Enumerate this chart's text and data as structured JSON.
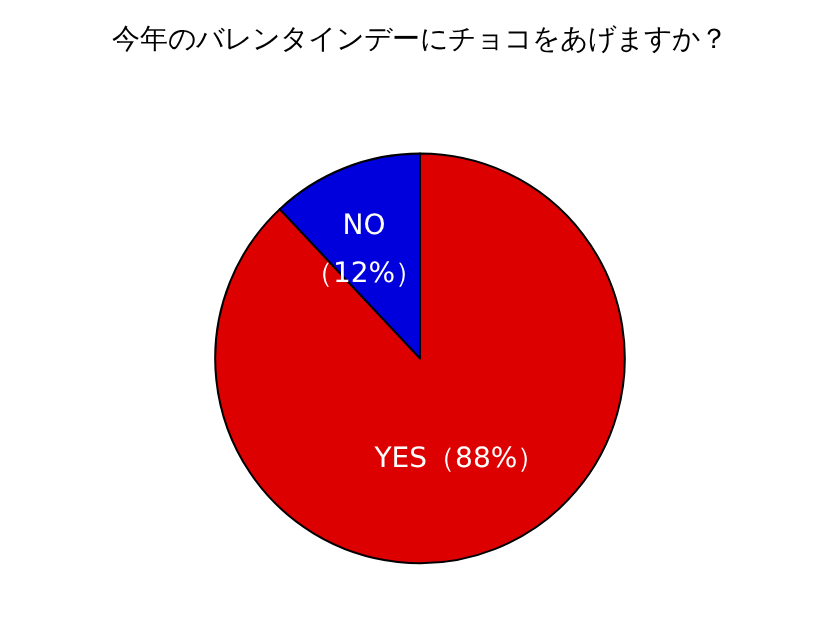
{
  "chart_data": {
    "type": "pie",
    "title": "今年のバレンタインデーにチョコをあげますか？",
    "categories": [
      "YES",
      "NO"
    ],
    "values": [
      88,
      12
    ],
    "colors": [
      "#dd0000",
      "#0000dd"
    ],
    "value_labels": [
      "（88%）",
      "（12%）"
    ],
    "legend": false
  }
}
